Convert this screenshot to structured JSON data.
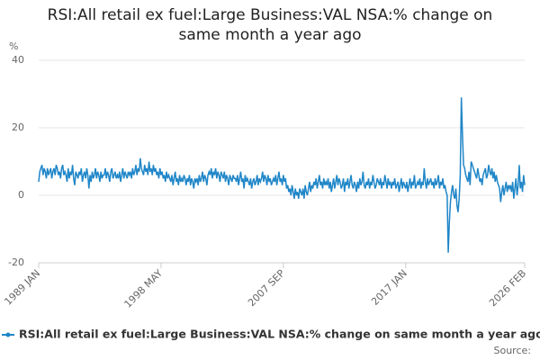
{
  "chart_data": {
    "type": "line",
    "title": "RSI:All retail ex fuel:Large Business:VAL NSA:% change on same month a year ago",
    "y_label": "%",
    "source": "Source:",
    "categories": [
      "1989 JAN",
      null,
      null,
      null,
      null,
      null,
      null,
      null,
      null,
      null,
      null,
      null,
      null,
      null,
      null,
      null,
      null,
      null,
      null,
      null,
      null,
      null,
      null,
      null,
      null,
      null,
      null,
      null,
      null,
      null,
      null,
      null,
      null,
      null,
      null,
      null,
      null,
      null,
      null,
      null,
      null,
      null,
      null,
      null,
      null,
      null,
      null,
      null,
      null,
      null,
      null,
      null,
      null,
      null,
      null,
      null,
      null,
      null,
      null,
      null,
      null,
      null,
      null,
      null,
      null,
      null,
      null,
      null,
      null,
      null,
      null,
      null,
      null,
      null,
      null,
      null,
      null,
      null,
      null,
      null,
      null,
      null,
      null,
      null,
      null,
      null,
      null,
      null,
      null,
      null,
      null,
      null,
      null,
      null,
      null,
      null,
      null,
      null,
      null,
      null,
      null,
      null,
      null,
      null,
      null,
      null,
      null,
      null,
      null,
      null,
      null,
      null,
      "1998 MAY",
      null,
      null,
      null,
      null,
      null,
      null,
      null,
      null,
      null,
      null,
      null,
      null,
      null,
      null,
      null,
      null,
      null,
      null,
      null,
      null,
      null,
      null,
      null,
      null,
      null,
      null,
      null,
      null,
      null,
      null,
      null,
      null,
      null,
      null,
      null,
      null,
      null,
      null,
      null,
      null,
      null,
      null,
      null,
      null,
      null,
      null,
      null,
      null,
      null,
      null,
      null,
      null,
      null,
      null,
      null,
      null,
      null,
      null,
      null,
      null,
      null,
      null,
      null,
      null,
      null,
      null,
      null,
      null,
      null,
      null,
      null,
      null,
      null,
      null,
      null,
      null,
      null,
      null,
      null,
      null,
      null,
      null,
      null,
      null,
      null,
      null,
      null,
      null,
      null,
      null,
      null,
      null,
      null,
      null,
      null,
      null,
      null,
      null,
      null,
      null,
      null,
      null,
      null,
      null,
      null,
      null,
      null,
      null,
      null,
      null,
      null,
      "2007 SEP",
      null,
      null,
      null,
      null,
      null,
      null,
      null,
      null,
      null,
      null,
      null,
      null,
      null,
      null,
      null,
      null,
      null,
      null,
      null,
      null,
      null,
      null,
      null,
      null,
      null,
      null,
      null,
      null,
      null,
      null,
      null,
      null,
      null,
      null,
      null,
      null,
      null,
      null,
      null,
      null,
      null,
      null,
      null,
      null,
      null,
      null,
      null,
      null,
      null,
      null,
      null,
      null,
      null,
      null,
      null,
      null,
      null,
      null,
      null,
      null,
      null,
      null,
      null,
      null,
      null,
      null,
      null,
      null,
      null,
      null,
      null,
      null,
      null,
      null,
      null,
      null,
      null,
      null,
      null,
      null,
      null,
      null,
      null,
      null,
      null,
      null,
      null,
      null,
      null,
      null,
      null,
      null,
      null,
      null,
      null,
      null,
      null,
      null,
      null,
      null,
      null,
      null,
      null,
      null,
      null,
      null,
      null,
      null,
      null,
      null,
      null,
      "2017 JAN",
      null,
      null,
      null,
      null,
      null,
      null,
      null,
      null,
      null,
      null,
      null,
      null,
      null,
      null,
      null,
      null,
      null,
      null,
      null,
      null,
      null,
      null,
      null,
      null,
      null,
      null,
      null,
      null,
      null,
      null,
      null,
      null,
      null,
      null,
      null,
      null,
      null,
      null,
      null,
      null,
      null,
      null,
      null,
      null,
      null,
      null,
      null,
      null,
      null,
      null,
      null,
      null,
      null,
      null,
      null,
      null,
      null,
      null,
      null,
      null,
      null,
      null,
      null,
      null,
      null,
      null,
      null,
      null,
      null,
      null,
      null,
      null,
      null,
      null,
      null,
      null,
      null,
      null,
      null,
      null,
      null,
      null,
      null,
      null,
      null,
      null,
      null,
      null,
      null,
      null,
      null,
      null,
      null,
      null,
      null,
      null,
      null,
      null,
      null,
      null,
      null,
      null,
      null,
      null,
      null,
      null,
      null,
      null,
      "2026 FEB"
    ],
    "series": [
      {
        "name": "RSI:All retail ex fuel:Large Business:VAL NSA:% change on same month a year ago",
        "color": "#1f86c8",
        "values": [
          4,
          7,
          8,
          9,
          6,
          8,
          7,
          5,
          8,
          6,
          7,
          8,
          5,
          7,
          8,
          6,
          9,
          8,
          6,
          7,
          5,
          8,
          9,
          6,
          7,
          6,
          4,
          8,
          5,
          7,
          6,
          9,
          5,
          3,
          7,
          6,
          5,
          7,
          6,
          8,
          4,
          6,
          7,
          5,
          8,
          6,
          2,
          6,
          4,
          7,
          5,
          6,
          8,
          5,
          7,
          6,
          4,
          7,
          5,
          6,
          6,
          8,
          5,
          7,
          6,
          4,
          7,
          8,
          5,
          6,
          7,
          5,
          6,
          5,
          7,
          4,
          6,
          8,
          5,
          7,
          6,
          5,
          7,
          6,
          7,
          5,
          8,
          6,
          7,
          9,
          6,
          8,
          7,
          11,
          8,
          7,
          6,
          9,
          7,
          8,
          6,
          10,
          7,
          8,
          6,
          9,
          7,
          8,
          6,
          7,
          5,
          8,
          6,
          7,
          5,
          6,
          4,
          7,
          5,
          6,
          5,
          4,
          6,
          3,
          5,
          7,
          4,
          5,
          3,
          6,
          4,
          5,
          4,
          6,
          5,
          3,
          5,
          4,
          6,
          3,
          5,
          4,
          2,
          5,
          4,
          5,
          3,
          6,
          4,
          5,
          7,
          4,
          6,
          5,
          3,
          6,
          7,
          6,
          8,
          5,
          7,
          6,
          8,
          5,
          7,
          6,
          4,
          7,
          6,
          5,
          7,
          4,
          6,
          5,
          3,
          6,
          5,
          4,
          6,
          5,
          5,
          4,
          6,
          3,
          5,
          7,
          4,
          5,
          2,
          6,
          4,
          5,
          4,
          3,
          5,
          2,
          4,
          5,
          3,
          4,
          6,
          3,
          5,
          4,
          5,
          7,
          4,
          6,
          5,
          3,
          6,
          4,
          5,
          3,
          4,
          5,
          4,
          6,
          3,
          5,
          7,
          4,
          5,
          3,
          6,
          4,
          5,
          2,
          3,
          1,
          2,
          0,
          3,
          1,
          -1,
          2,
          0,
          1,
          -1,
          2,
          1,
          0,
          2,
          -1,
          3,
          1,
          0,
          2,
          4,
          1,
          3,
          2,
          4,
          3,
          5,
          2,
          4,
          6,
          3,
          4,
          2,
          5,
          3,
          4,
          3,
          5,
          2,
          4,
          1,
          3,
          5,
          2,
          4,
          6,
          3,
          5,
          4,
          2,
          3,
          5,
          1,
          4,
          3,
          5,
          2,
          4,
          6,
          3,
          2,
          4,
          3,
          1,
          4,
          2,
          5,
          3,
          4,
          7,
          3,
          2,
          4,
          3,
          5,
          2,
          4,
          3,
          6,
          4,
          2,
          3,
          5,
          4,
          3,
          5,
          2,
          4,
          3,
          6,
          4,
          2,
          5,
          3,
          4,
          2,
          4,
          3,
          5,
          2,
          3,
          4,
          1,
          3,
          5,
          2,
          4,
          3,
          2,
          4,
          1,
          3,
          5,
          2,
          4,
          3,
          6,
          2,
          3,
          4,
          3,
          5,
          2,
          4,
          3,
          8,
          4,
          2,
          5,
          3,
          4,
          5,
          3,
          4,
          2,
          5,
          3,
          4,
          6,
          2,
          4,
          3,
          5,
          2,
          3,
          1,
          0,
          -17,
          -8,
          -2,
          1,
          3,
          0,
          -1,
          2,
          -3,
          -5,
          -1,
          6,
          29,
          18,
          9,
          8,
          6,
          5,
          4,
          7,
          3,
          10,
          9,
          8,
          7,
          6,
          5,
          8,
          6,
          4,
          5,
          3,
          6,
          7,
          8,
          5,
          6,
          9,
          7,
          6,
          8,
          5,
          7,
          4,
          6,
          4,
          3,
          2,
          -2,
          1,
          3,
          0,
          2,
          4,
          1,
          3,
          2,
          3,
          1,
          4,
          -1,
          2,
          5,
          0,
          3,
          9,
          2,
          4,
          1,
          6,
          3
        ]
      }
    ],
    "ylim": [
      -20,
      40
    ],
    "yticks": [
      -20,
      0,
      20,
      40
    ],
    "grid": true
  }
}
